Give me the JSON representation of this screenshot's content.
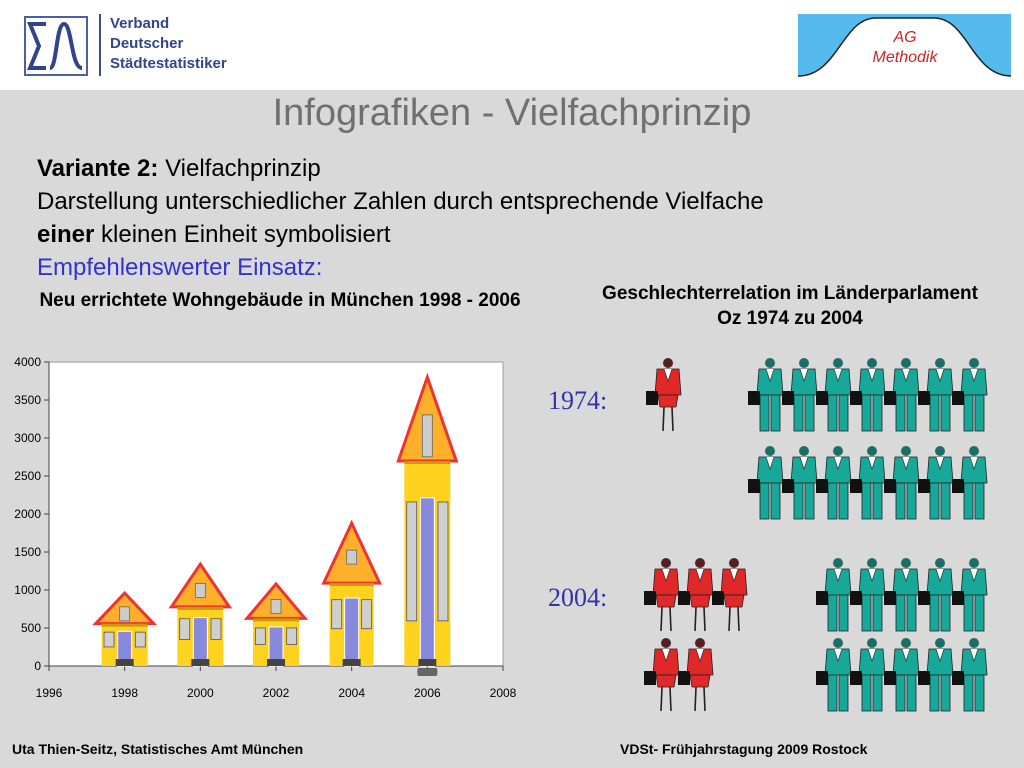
{
  "header": {
    "vds_lines": [
      "Verband",
      "Deutscher",
      "Städtestatistiker"
    ],
    "ag_lines": [
      "AG",
      "Methodik"
    ],
    "colors": {
      "ag_background": "#55bbee",
      "ag_text": "#cc2222",
      "vds_blue": "#33448a"
    }
  },
  "slide": {
    "title": "Infografiken - Vielfachprinzip",
    "variant_label": "Variante 2:",
    "variant_text": " Vielfachprinzip",
    "line2": "Darstellung unterschiedlicher Zahlen durch entsprechende Vielfache",
    "line3_bold": "einer",
    "line3_rest": " kleinen Einheit symbolisiert",
    "recommendation": "Empfehlenswerter Einsatz:"
  },
  "chart_data": [
    {
      "type": "bar",
      "title": "Neu errichtete Wohngebäude in München 1998 - 2006",
      "x": [
        1998,
        2000,
        2002,
        2004,
        2006
      ],
      "values": [
        960,
        1340,
        1080,
        1880,
        3800
      ],
      "xlim": [
        1996,
        2008
      ],
      "ylim": [
        0,
        4000
      ],
      "xticks": [
        "1996",
        "1998",
        "2000",
        "2002",
        "2004",
        "2006",
        "2008"
      ],
      "yticks": [
        "0",
        "500",
        "1000",
        "1500",
        "2000",
        "2500",
        "3000",
        "3500",
        "4000"
      ],
      "mark": "house-icon",
      "colors": {
        "house": "#ffd21e",
        "roof": "#ffb02a",
        "roof_edge": "#ee3333",
        "window": "#8888dd"
      }
    },
    {
      "type": "pictogram",
      "title": "Geschlechterrelation im Länderparlament Oz 1974 zu 2004",
      "rows": [
        {
          "label": "1974:",
          "women": 1,
          "men": 14
        },
        {
          "label": "2004:",
          "women": 5,
          "men": 10
        }
      ],
      "icons": {
        "woman": "businesswoman-icon",
        "man": "businessman-icon"
      },
      "colors": {
        "woman": "#e02828",
        "man": "#17a89a"
      }
    }
  ],
  "footer": {
    "left": "Uta Thien-Seitz, Statistisches Amt München",
    "right": "VDSt- Frühjahrstagung 2009 Rostock"
  }
}
